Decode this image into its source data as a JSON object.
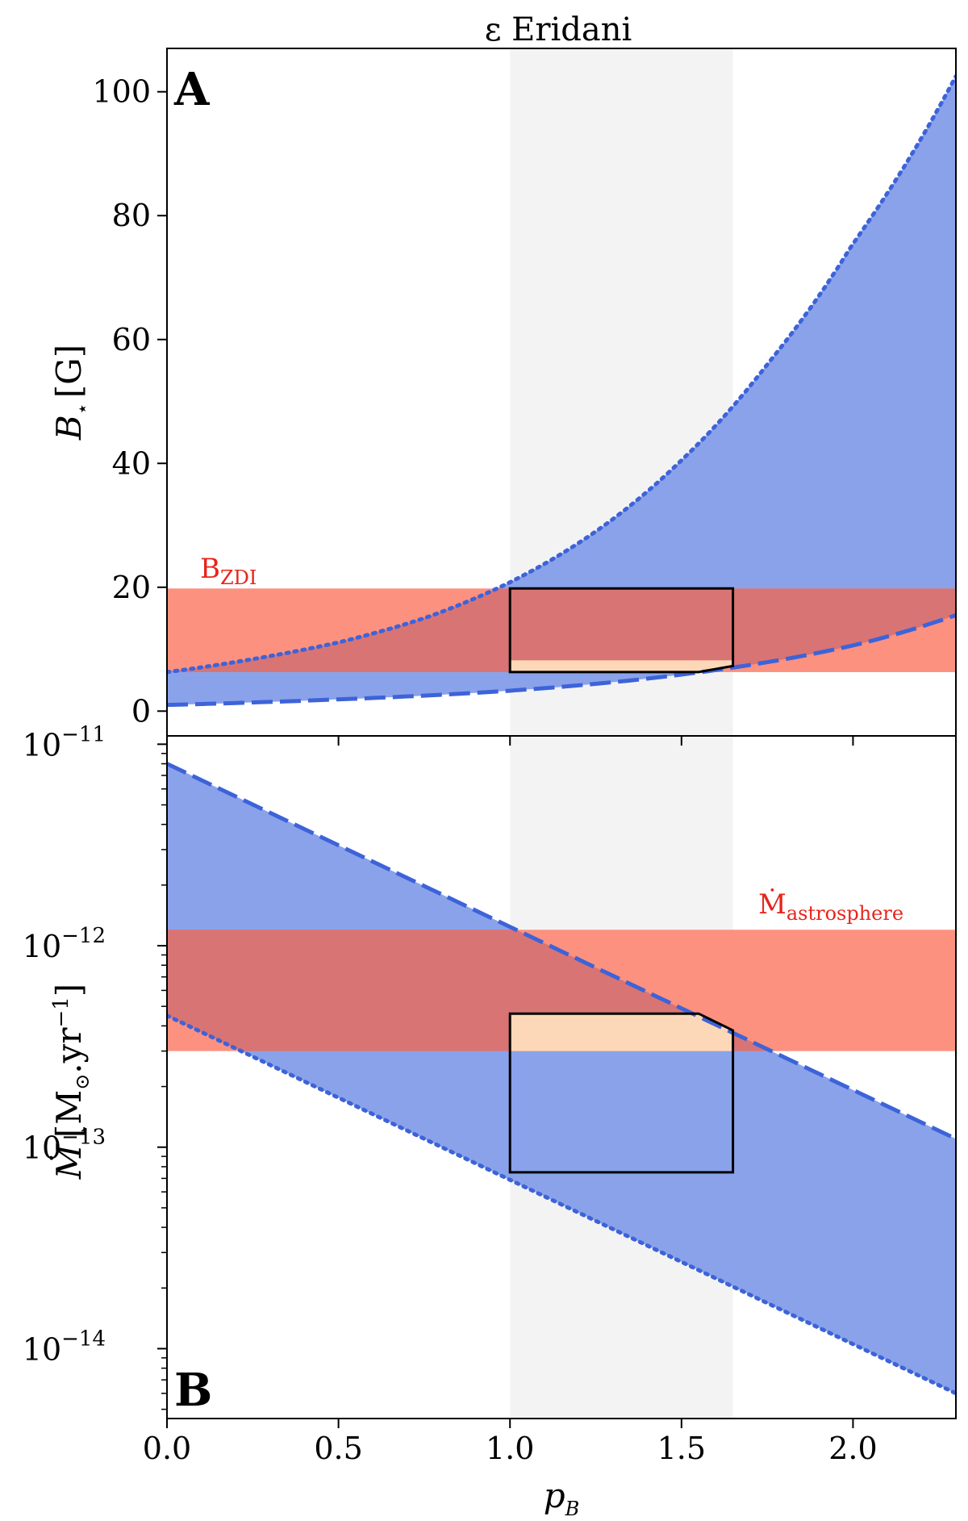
{
  "title": "ε Eridani",
  "x_axis": {
    "label_main": "p",
    "label_sub": "B",
    "ticks": [
      "0.0",
      "0.5",
      "1.0",
      "1.5",
      "2.0"
    ]
  },
  "colors": {
    "model_fill": "#8aa2ea",
    "model_line": "#3d63d9",
    "obs_band": "#fc9180",
    "overlap": "#d97474",
    "allowed_region": "#fdd8b8",
    "highlight_span": "#f3f3f3",
    "obs_label": "#e8241b"
  },
  "chart_data": [
    {
      "type": "area",
      "panel": "A",
      "xlim": [
        0,
        2.3
      ],
      "ylim": [
        -4,
        107
      ],
      "yscale": "linear",
      "y_ticks": [
        "0",
        "20",
        "40",
        "60",
        "80",
        "100"
      ],
      "ylabel_main": "B",
      "ylabel_sub": "⋆",
      "ylabel_unit": "[G]",
      "highlight_x_span": [
        1.0,
        1.65
      ],
      "series": [
        {
          "style": "dotted",
          "x": [
            0,
            0.25,
            0.5,
            0.75,
            1.0,
            1.25,
            1.5,
            1.75,
            2.0,
            2.3
          ],
          "y": [
            6.3,
            8.4,
            11.1,
            15.0,
            20.8,
            29.0,
            40.5,
            56.0,
            75.5,
            102.5
          ]
        },
        {
          "style": "dashed",
          "x": [
            0,
            0.25,
            0.5,
            0.75,
            1.0,
            1.25,
            1.5,
            1.75,
            2.0,
            2.3
          ],
          "y": [
            1.0,
            1.4,
            1.9,
            2.5,
            3.3,
            4.4,
            5.9,
            7.9,
            10.6,
            15.5
          ]
        }
      ],
      "observed_band": {
        "name": "B",
        "name_sub": "ZDI",
        "range": [
          6.3,
          19.8
        ]
      },
      "allowed_region": {
        "x": [
          1.0,
          1.0,
          1.65,
          1.65,
          1.55,
          1.0
        ],
        "y": [
          6.3,
          19.8,
          19.8,
          7.3,
          6.3,
          6.3
        ]
      },
      "region_box": {
        "x": [
          1.0,
          1.65
        ],
        "y": [
          6.3,
          19.8
        ]
      }
    },
    {
      "type": "area",
      "panel": "B",
      "xlim": [
        0,
        2.3
      ],
      "ylim": [
        4.5e-15,
        1.1e-11
      ],
      "yscale": "log",
      "y_ticks_base": "10",
      "y_ticks_exp": [
        "−11",
        "−12",
        "−13",
        "−14"
      ],
      "ylabel_main": "Ṁ",
      "ylabel_unit_pre": "[M",
      "ylabel_unit_sub": "⊙",
      "ylabel_unit_mid": ".yr",
      "ylabel_unit_sup": "−1",
      "ylabel_unit_post": "]",
      "highlight_x_span": [
        1.0,
        1.65
      ],
      "series": [
        {
          "style": "dashed",
          "x": [
            0,
            2.3
          ],
          "y": [
            8e-12,
            1.1e-13
          ]
        },
        {
          "style": "dotted",
          "x": [
            0,
            2.3
          ],
          "y": [
            4.5e-13,
            6e-15
          ]
        }
      ],
      "observed_band": {
        "name": "Ṁ",
        "name_sub": "astrosphere",
        "range": [
          3e-13,
          1.2e-12
        ]
      },
      "allowed_region": {
        "x": [
          1.0,
          1.0,
          1.55,
          1.65,
          1.65,
          1.0
        ],
        "y": [
          3e-13,
          4.6e-13,
          4.6e-13,
          3.8e-13,
          3e-13,
          3e-13
        ]
      },
      "region_box": {
        "x": [
          1.0,
          1.65
        ],
        "y": [
          7.5e-14,
          4.6e-13
        ]
      }
    }
  ]
}
